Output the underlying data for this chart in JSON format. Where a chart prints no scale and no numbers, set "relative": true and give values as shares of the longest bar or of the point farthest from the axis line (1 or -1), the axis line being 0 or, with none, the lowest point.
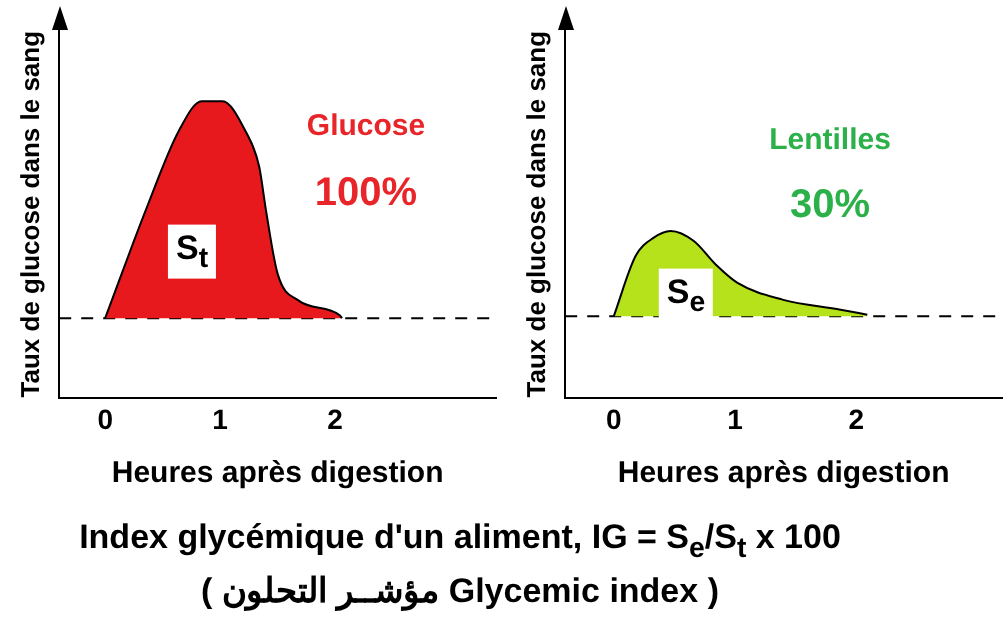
{
  "chart_data": [
    {
      "type": "area",
      "relative": true,
      "xlabel": "Heures après digestion",
      "ylabel": "Taux de glucose dans le sang",
      "xlim": [
        -0.4,
        3.4
      ],
      "xticks": [
        0,
        1,
        2
      ],
      "grid": false,
      "legend": false,
      "marker": "none",
      "x": [
        0,
        0.35,
        0.64,
        0.84,
        1.02,
        1.22,
        1.34,
        1.4,
        1.5,
        1.68,
        2.04,
        2.06
      ],
      "series": [
        {
          "color": "#e8191c",
          "values": [
            0.27,
            0.63,
            0.9,
            1.0,
            1.0,
            0.9,
            0.78,
            0.63,
            0.42,
            0.33,
            0.28,
            0.27
          ]
        }
      ],
      "ref_lines": [
        {
          "axis": "y",
          "value": 0.27,
          "line_style": "dashed",
          "color": "#000000"
        }
      ],
      "annotations": [
        "Glucose",
        "100%",
        "S$_{t}$"
      ]
    },
    {
      "type": "area",
      "relative": true,
      "xlabel": "Heures après digestion",
      "ylabel": "Taux de glucose dans le sang",
      "xlim": [
        -0.4,
        3.2
      ],
      "xticks": [
        0,
        1,
        2
      ],
      "grid": false,
      "legend": false,
      "marker": "none",
      "x": [
        0,
        0.18,
        0.33,
        0.47,
        0.66,
        0.84,
        1.02,
        1.39,
        1.87,
        2.09
      ],
      "series": [
        {
          "color": "#b5e21b",
          "values": [
            0.49,
            0.85,
            0.96,
            1.0,
            0.94,
            0.8,
            0.69,
            0.59,
            0.53,
            0.5
          ]
        }
      ],
      "ref_lines": [
        {
          "axis": "y",
          "value": 0.49,
          "line_style": "dashed",
          "color": "#000000"
        }
      ],
      "annotations": [
        "Lentilles",
        "30%",
        "S$_{e}$",
        "Index glycémique d'un aliment, IG = S$_{e}$/S$_{t}$ x 100",
        "( مؤشــر التحلون  Glycemic index )"
      ]
    }
  ]
}
